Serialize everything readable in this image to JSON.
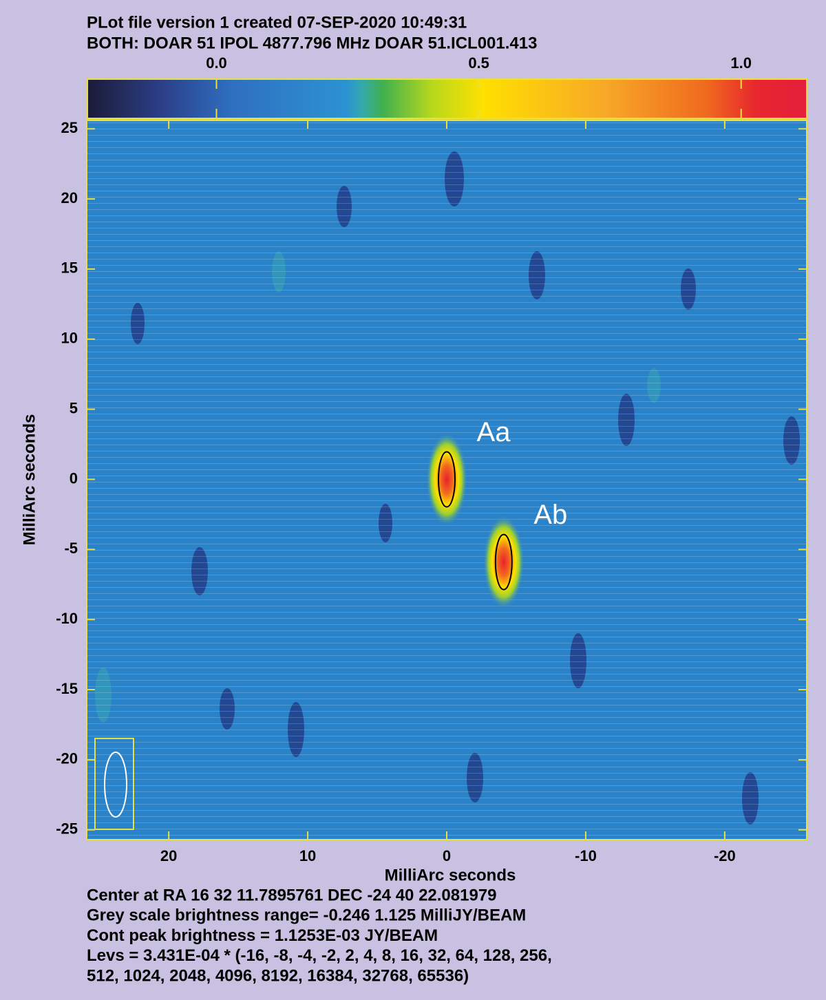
{
  "chart_data": {
    "type": "image",
    "title": [
      "PLot file version 1  created 07-SEP-2020 10:49:31",
      "BOTH: DOAR 51  IPOL  4877.796 MHz  DOAR 51.ICL001.413"
    ],
    "xlabel": "MilliArc seconds",
    "ylabel": "MilliArc seconds",
    "xlim": [
      25.9,
      -25.9
    ],
    "xticks": [
      20,
      10,
      0,
      -10,
      -20
    ],
    "ylim": [
      -25.7,
      25.6
    ],
    "yticks": [
      -25,
      -20,
      -15,
      -10,
      -5,
      0,
      5,
      10,
      15,
      20,
      25
    ],
    "clim": [
      -0.246,
      1.125
    ],
    "cticks": [
      {
        "value": 0,
        "label": "0.0"
      },
      0.5,
      {
        "value": 1,
        "label": "1.0"
      }
    ],
    "sources": [
      {
        "name": "Aa",
        "x": 0,
        "y": 0
      },
      {
        "name": "Ab",
        "x": -4.1,
        "y": -5.9
      }
    ],
    "footer": [
      "Center at RA 16 32 11.7895761   DEC -24 40 22.081979",
      "Grey scale brightness range= -0.246 1.125 MilliJY/BEAM",
      "Cont peak brightness = 1.1253E-03 JY/BEAM",
      "Levs = 3.431E-04 * (-16, -8, -4, -2, 2, 4, 8, 16, 32, 64, 128, 256,",
      "512, 1024, 2048, 4096, 8192, 16384, 32768, 65536)"
    ]
  }
}
